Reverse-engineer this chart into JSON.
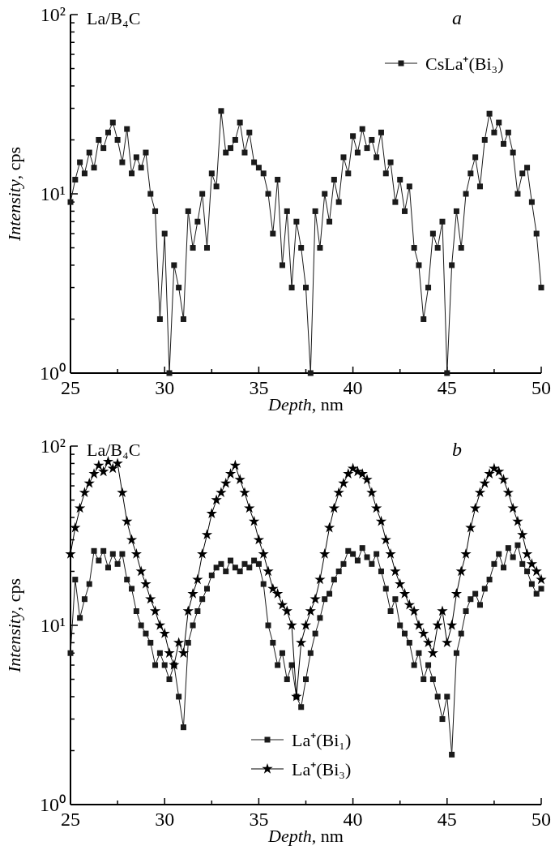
{
  "chart_data": [
    {
      "type": "line",
      "title": "a",
      "annotations": [
        "La/B₄C"
      ],
      "xlabel": "Depth, nm",
      "ylabel": "Intensity, cps",
      "log": "y",
      "grid": false,
      "legend": "top right",
      "line_style": "solid",
      "xlim": [
        25,
        50
      ],
      "xticks": [
        25,
        {
          "value": 27.5,
          "label": null
        },
        30,
        {
          "value": 32.5,
          "label": null
        },
        35,
        {
          "value": 37.5,
          "label": null
        },
        40,
        {
          "value": 42.5,
          "label": null
        },
        45,
        {
          "value": 47.5,
          "label": null
        },
        50
      ],
      "ylim": [
        1,
        100
      ],
      "yticks": [
        {
          "value": 1,
          "label": "10⁰"
        },
        {
          "value": 2,
          "label": null
        },
        {
          "value": 3,
          "label": null
        },
        {
          "value": 4,
          "label": null
        },
        {
          "value": 5,
          "label": null
        },
        {
          "value": 6,
          "label": null
        },
        {
          "value": 7,
          "label": null
        },
        {
          "value": 8,
          "label": null
        },
        {
          "value": 9,
          "label": null
        },
        {
          "value": 10,
          "label": "10¹"
        },
        {
          "value": 20,
          "label": null
        },
        {
          "value": 30,
          "label": null
        },
        {
          "value": 40,
          "label": null
        },
        {
          "value": 50,
          "label": null
        },
        {
          "value": 60,
          "label": null
        },
        {
          "value": 70,
          "label": null
        },
        {
          "value": 80,
          "label": null
        },
        {
          "value": 90,
          "label": null
        },
        {
          "value": 100,
          "label": "10²"
        }
      ],
      "x": [
        25,
        25.25,
        25.5,
        25.75,
        26,
        26.25,
        26.5,
        26.75,
        27,
        27.25,
        27.5,
        27.75,
        28,
        28.25,
        28.5,
        28.75,
        29,
        29.25,
        29.5,
        29.75,
        30,
        30.25,
        30.5,
        30.75,
        31,
        31.25,
        31.5,
        31.75,
        32,
        32.25,
        32.5,
        32.75,
        33,
        33.25,
        33.5,
        33.75,
        34,
        34.25,
        34.5,
        34.75,
        35,
        35.25,
        35.5,
        35.75,
        36,
        36.25,
        36.5,
        36.75,
        37,
        37.25,
        37.5,
        37.75,
        38,
        38.25,
        38.5,
        38.75,
        39,
        39.25,
        39.5,
        39.75,
        40,
        40.25,
        40.5,
        40.75,
        41,
        41.25,
        41.5,
        41.75,
        42,
        42.25,
        42.5,
        42.75,
        43,
        43.25,
        43.5,
        43.75,
        44,
        44.25,
        44.5,
        44.75,
        45,
        45.25,
        45.5,
        45.75,
        46,
        46.25,
        46.5,
        46.75,
        47,
        47.25,
        47.5,
        47.75,
        48,
        48.25,
        48.5,
        48.75,
        49,
        49.25,
        49.5,
        49.75,
        50
      ],
      "series": [
        {
          "name": "CsLa⁺(Bi₃)",
          "color": "#1a1a1a",
          "marker": "square",
          "values": [
            9,
            12,
            15,
            13,
            17,
            14,
            20,
            18,
            22,
            25,
            20,
            15,
            23,
            13,
            16,
            14,
            17,
            10,
            8,
            2,
            6,
            1,
            4,
            3,
            2,
            8,
            5,
            7,
            10,
            5,
            13,
            11,
            29,
            17,
            18,
            20,
            25,
            17,
            22,
            15,
            14,
            13,
            10,
            6,
            12,
            4,
            8,
            3,
            7,
            5,
            3,
            1,
            8,
            5,
            10,
            7,
            12,
            9,
            16,
            13,
            21,
            17,
            23,
            18,
            20,
            16,
            22,
            13,
            15,
            9,
            12,
            8,
            11,
            5,
            4,
            2,
            3,
            6,
            5,
            7,
            1,
            4,
            8,
            5,
            10,
            13,
            16,
            11,
            20,
            28,
            22,
            25,
            19,
            22,
            17,
            10,
            13,
            14,
            9,
            6,
            3
          ]
        }
      ]
    },
    {
      "type": "line",
      "title": "b",
      "annotations": [
        "La/B₄C"
      ],
      "xlabel": "Depth, nm",
      "ylabel": "Intensity, cps",
      "log": "y",
      "grid": false,
      "legend": "bottom",
      "line_style": "solid",
      "xlim": [
        25,
        50
      ],
      "xticks": [
        25,
        {
          "value": 27.5,
          "label": null
        },
        30,
        {
          "value": 32.5,
          "label": null
        },
        35,
        {
          "value": 37.5,
          "label": null
        },
        40,
        {
          "value": 42.5,
          "label": null
        },
        45,
        {
          "value": 47.5,
          "label": null
        },
        50
      ],
      "ylim": [
        1,
        100
      ],
      "yticks": [
        {
          "value": 1,
          "label": "10⁰"
        },
        {
          "value": 2,
          "label": null
        },
        {
          "value": 3,
          "label": null
        },
        {
          "value": 4,
          "label": null
        },
        {
          "value": 5,
          "label": null
        },
        {
          "value": 6,
          "label": null
        },
        {
          "value": 7,
          "label": null
        },
        {
          "value": 8,
          "label": null
        },
        {
          "value": 9,
          "label": null
        },
        {
          "value": 10,
          "label": "10¹"
        },
        {
          "value": 20,
          "label": null
        },
        {
          "value": 30,
          "label": null
        },
        {
          "value": 40,
          "label": null
        },
        {
          "value": 50,
          "label": null
        },
        {
          "value": 60,
          "label": null
        },
        {
          "value": 70,
          "label": null
        },
        {
          "value": 80,
          "label": null
        },
        {
          "value": 90,
          "label": null
        },
        {
          "value": 100,
          "label": "10²"
        }
      ],
      "x": [
        25,
        25.25,
        25.5,
        25.75,
        26,
        26.25,
        26.5,
        26.75,
        27,
        27.25,
        27.5,
        27.75,
        28,
        28.25,
        28.5,
        28.75,
        29,
        29.25,
        29.5,
        29.75,
        30,
        30.25,
        30.5,
        30.75,
        31,
        31.25,
        31.5,
        31.75,
        32,
        32.25,
        32.5,
        32.75,
        33,
        33.25,
        33.5,
        33.75,
        34,
        34.25,
        34.5,
        34.75,
        35,
        35.25,
        35.5,
        35.75,
        36,
        36.25,
        36.5,
        36.75,
        37,
        37.25,
        37.5,
        37.75,
        38,
        38.25,
        38.5,
        38.75,
        39,
        39.25,
        39.5,
        39.75,
        40,
        40.25,
        40.5,
        40.75,
        41,
        41.25,
        41.5,
        41.75,
        42,
        42.25,
        42.5,
        42.75,
        43,
        43.25,
        43.5,
        43.75,
        44,
        44.25,
        44.5,
        44.75,
        45,
        45.25,
        45.5,
        45.75,
        46,
        46.25,
        46.5,
        46.75,
        47,
        47.25,
        47.5,
        47.75,
        48,
        48.25,
        48.5,
        48.75,
        49,
        49.25,
        49.5,
        49.75,
        50
      ],
      "series": [
        {
          "name": "La⁺(Bi₁)",
          "color": "#1a1a1a",
          "marker": "square",
          "values": [
            7,
            18,
            11,
            14,
            17,
            26,
            23,
            26,
            21,
            25,
            22,
            25,
            18,
            16,
            12,
            10,
            9,
            8,
            6,
            7,
            6,
            5,
            6,
            4,
            2.7,
            8,
            10,
            12,
            14,
            16,
            19,
            21,
            22,
            20,
            23,
            21,
            20,
            22,
            21,
            23,
            22,
            17,
            10,
            8,
            6,
            7,
            5,
            6,
            4,
            3.5,
            5,
            7,
            9,
            11,
            14,
            15,
            18,
            20,
            22,
            26,
            25,
            23,
            27,
            24,
            22,
            25,
            20,
            16,
            12,
            14,
            10,
            9,
            8,
            6,
            7,
            5,
            6,
            5,
            4,
            3,
            4,
            1.9,
            7,
            9,
            12,
            14,
            15,
            13,
            16,
            18,
            22,
            25,
            21,
            27,
            24,
            28,
            22,
            20,
            17,
            15,
            16
          ]
        },
        {
          "name": "La⁺(Bi₃)",
          "color": "#000000",
          "marker": "star",
          "values": [
            25,
            35,
            45,
            55,
            62,
            70,
            78,
            72,
            82,
            75,
            80,
            55,
            38,
            30,
            25,
            20,
            17,
            14,
            12,
            10,
            9,
            7,
            6,
            8,
            7,
            12,
            15,
            18,
            25,
            32,
            42,
            50,
            55,
            62,
            70,
            78,
            65,
            55,
            45,
            38,
            30,
            25,
            20,
            16,
            15,
            13,
            12,
            10,
            4,
            8,
            10,
            12,
            14,
            18,
            25,
            35,
            45,
            55,
            62,
            70,
            75,
            72,
            70,
            65,
            55,
            45,
            38,
            30,
            25,
            20,
            17,
            15,
            13,
            12,
            10,
            9,
            8,
            7,
            10,
            12,
            8,
            10,
            15,
            20,
            25,
            35,
            45,
            55,
            62,
            70,
            75,
            72,
            65,
            55,
            45,
            38,
            32,
            25,
            22,
            20,
            18
          ]
        }
      ]
    }
  ]
}
